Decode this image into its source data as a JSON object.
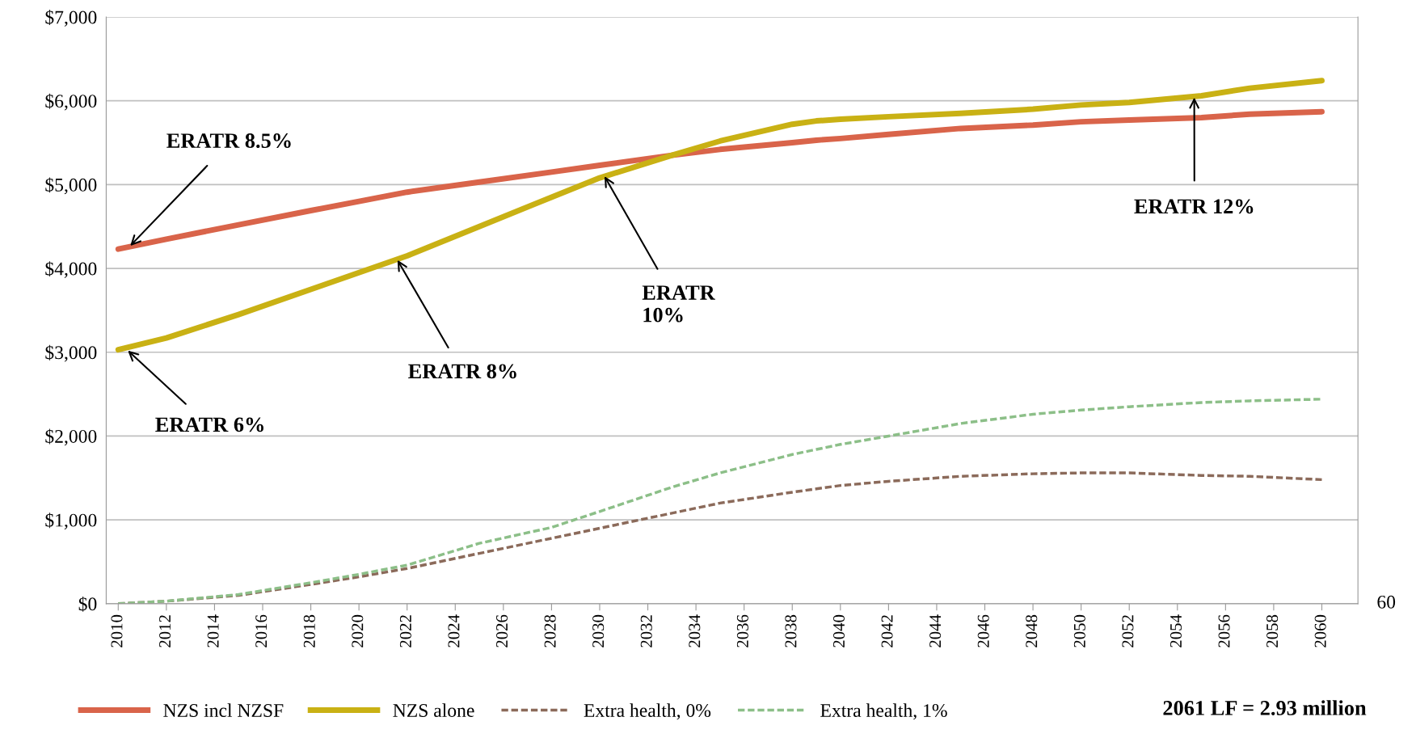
{
  "chart_data": {
    "type": "line",
    "x": [
      2010,
      2012,
      2015,
      2018,
      2020,
      2022,
      2025,
      2028,
      2030,
      2033,
      2035,
      2038,
      2039,
      2040,
      2042,
      2045,
      2048,
      2050,
      2052,
      2055,
      2057,
      2060
    ],
    "series": [
      {
        "name": "NZS incl NZSF",
        "color": "#d9644a",
        "line_style": "solid",
        "values": [
          4230,
          4350,
          4520,
          4690,
          4800,
          4910,
          5030,
          5150,
          5230,
          5350,
          5420,
          5500,
          5530,
          5550,
          5600,
          5670,
          5710,
          5750,
          5770,
          5800,
          5840,
          5870
        ]
      },
      {
        "name": "NZS alone",
        "color": "#c9b114",
        "line_style": "solid",
        "values": [
          3030,
          3170,
          3450,
          3750,
          3950,
          4150,
          4500,
          4850,
          5080,
          5350,
          5520,
          5720,
          5760,
          5780,
          5810,
          5850,
          5900,
          5950,
          5980,
          6060,
          6150,
          6240
        ]
      },
      {
        "name": "Extra health, 0%",
        "color": "#8b6a5a",
        "line_style": "dashed",
        "values": [
          0,
          30,
          100,
          230,
          320,
          420,
          600,
          780,
          900,
          1080,
          1200,
          1330,
          1370,
          1410,
          1460,
          1520,
          1550,
          1560,
          1560,
          1530,
          1520,
          1480
        ]
      },
      {
        "name": "Extra health, 1%",
        "color": "#8cbf88",
        "line_style": "dashed",
        "values": [
          0,
          30,
          110,
          250,
          350,
          460,
          720,
          910,
          1100,
          1390,
          1560,
          1780,
          1840,
          1900,
          2000,
          2150,
          2260,
          2310,
          2350,
          2400,
          2420,
          2440
        ]
      }
    ],
    "xlim": [
      2009.5,
      2061.5
    ],
    "xticks": [
      2010,
      2012,
      2014,
      2016,
      2018,
      2020,
      2022,
      2024,
      2026,
      2028,
      2030,
      2032,
      2034,
      2036,
      2038,
      2040,
      2042,
      2044,
      2046,
      2048,
      2050,
      2052,
      2054,
      2056,
      2058,
      2060
    ],
    "ylim": [
      0,
      7000
    ],
    "yticks": [
      {
        "value": 0,
        "label": "$0"
      },
      {
        "value": 1000,
        "label": "$1,000"
      },
      {
        "value": 2000,
        "label": "$2,000"
      },
      {
        "value": 3000,
        "label": "$3,000"
      },
      {
        "value": 4000,
        "label": "$4,000"
      },
      {
        "value": 5000,
        "label": "$5,000"
      },
      {
        "value": 6000,
        "label": "$6,000"
      },
      {
        "value": 7000,
        "label": "$7,000"
      }
    ],
    "grid": "y",
    "legend": "bottom",
    "marker": "none",
    "annotations": [
      {
        "text": "ERATR 8.5%",
        "x": 2010.5,
        "y": 4270
      },
      {
        "text": "ERATR 6%",
        "x": 2010.4,
        "y": 3020
      },
      {
        "text": "ERATR 8%",
        "x": 2021.6,
        "y": 4100
      },
      {
        "text": "ERATR\n10%",
        "x": 2030.2,
        "y": 5100
      },
      {
        "text": "ERATR 12%",
        "x": 2054.7,
        "y": 6040
      },
      "2061 LF = 2.93 million",
      "60"
    ]
  }
}
